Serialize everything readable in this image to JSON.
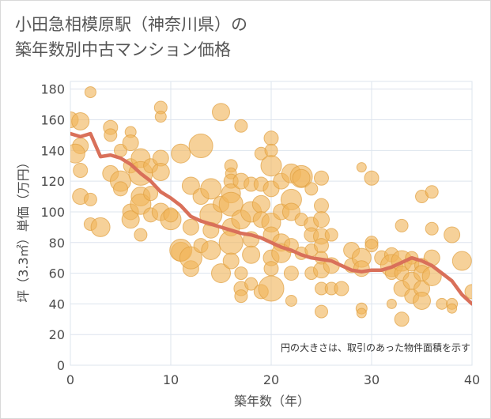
{
  "title_line1": "小田急相模原駅（神奈川県）の",
  "title_line2": "築年数別中古マンション価格",
  "chart_data": {
    "type": "scatter",
    "xlabel": "築年数（年）",
    "ylabel": "坪（3.3㎡）単価（万円）",
    "xlim": [
      0,
      40
    ],
    "ylim": [
      0,
      185
    ],
    "xticks": [
      0,
      10,
      20,
      30,
      40
    ],
    "yticks": [
      0,
      20,
      40,
      60,
      80,
      100,
      120,
      140,
      160,
      180
    ],
    "grid": true,
    "note": "円の大きさは、取引のあった物件面積を示す",
    "colors": {
      "bubble": "#f0b45a",
      "bubble_edge": "#e0a040",
      "line": "#d9705a",
      "grid": "#dde4ee"
    },
    "trend": {
      "x": [
        0,
        1,
        2,
        3,
        4,
        5,
        6,
        7,
        8,
        9,
        10,
        11,
        12,
        13,
        14,
        15,
        16,
        17,
        18,
        19,
        20,
        21,
        22,
        23,
        24,
        25,
        26,
        27,
        28,
        29,
        30,
        31,
        32,
        33,
        34,
        35,
        36,
        37,
        38,
        39,
        40
      ],
      "y": [
        151,
        149,
        151,
        136,
        137,
        135,
        131,
        125,
        120,
        113,
        109,
        104,
        97,
        94,
        92,
        90,
        88,
        86,
        85,
        83,
        80,
        77,
        75,
        72,
        70,
        69,
        68,
        65,
        62,
        61,
        62,
        62,
        64,
        67,
        70,
        68,
        65,
        60,
        55,
        46,
        40
      ]
    },
    "points": [
      [
        0,
        160,
        10
      ],
      [
        1,
        159,
        11
      ],
      [
        1,
        143,
        10
      ],
      [
        0.5,
        138,
        12
      ],
      [
        1,
        127,
        9
      ],
      [
        1,
        110,
        10
      ],
      [
        2,
        178,
        7
      ],
      [
        2,
        108,
        8
      ],
      [
        2,
        92,
        8
      ],
      [
        3,
        90,
        12
      ],
      [
        4,
        155,
        9
      ],
      [
        4,
        150,
        8
      ],
      [
        4,
        125,
        10
      ],
      [
        5,
        140,
        8
      ],
      [
        5,
        120,
        13
      ],
      [
        5,
        115,
        9
      ],
      [
        6,
        152,
        7
      ],
      [
        6,
        145,
        10
      ],
      [
        6,
        130,
        9
      ],
      [
        6,
        100,
        10
      ],
      [
        6,
        95,
        11
      ],
      [
        7,
        135,
        12
      ],
      [
        7,
        125,
        15
      ],
      [
        7,
        110,
        12
      ],
      [
        7,
        105,
        13
      ],
      [
        7,
        85,
        8
      ],
      [
        8,
        130,
        9
      ],
      [
        8,
        112,
        9
      ],
      [
        8,
        98,
        9
      ],
      [
        9,
        168,
        8
      ],
      [
        9,
        162,
        7
      ],
      [
        9,
        135,
        10
      ],
      [
        9,
        126,
        11
      ],
      [
        9,
        100,
        11
      ],
      [
        10,
        95,
        13
      ],
      [
        10,
        98,
        9
      ],
      [
        11,
        138,
        12
      ],
      [
        11,
        74,
        12
      ],
      [
        11,
        75,
        14
      ],
      [
        12,
        117,
        11
      ],
      [
        12,
        90,
        10
      ],
      [
        12,
        63,
        10
      ],
      [
        12,
        70,
        14
      ],
      [
        13,
        143,
        15
      ],
      [
        13,
        110,
        10
      ],
      [
        13,
        78,
        9
      ],
      [
        14,
        98,
        14
      ],
      [
        14,
        88,
        10
      ],
      [
        14,
        115,
        13
      ],
      [
        14,
        75,
        12
      ],
      [
        15,
        165,
        11
      ],
      [
        15,
        105,
        10
      ],
      [
        15,
        60,
        12
      ],
      [
        16,
        130,
        8
      ],
      [
        16,
        125,
        7
      ],
      [
        16,
        120,
        9
      ],
      [
        16,
        112,
        12
      ],
      [
        16,
        105,
        15
      ],
      [
        16,
        90,
        11
      ],
      [
        16,
        80,
        15
      ],
      [
        16,
        68,
        10
      ],
      [
        17,
        156,
        8
      ],
      [
        17,
        120,
        10
      ],
      [
        17,
        95,
        12
      ],
      [
        17,
        60,
        8
      ],
      [
        17,
        50,
        9
      ],
      [
        17,
        45,
        8
      ],
      [
        18,
        118,
        9
      ],
      [
        18,
        100,
        13
      ],
      [
        18,
        82,
        10
      ],
      [
        18,
        72,
        11
      ],
      [
        18,
        53,
        8
      ],
      [
        19,
        138,
        8
      ],
      [
        19,
        118,
        9
      ],
      [
        19,
        105,
        11
      ],
      [
        19,
        95,
        10
      ],
      [
        19,
        48,
        9
      ],
      [
        20,
        148,
        9
      ],
      [
        20,
        140,
        8
      ],
      [
        20,
        130,
        13
      ],
      [
        20,
        115,
        10
      ],
      [
        20,
        93,
        12
      ],
      [
        20,
        85,
        10
      ],
      [
        20,
        70,
        10
      ],
      [
        20,
        63,
        9
      ],
      [
        20,
        50,
        16
      ],
      [
        21,
        120,
        10
      ],
      [
        21,
        100,
        10
      ],
      [
        21,
        80,
        11
      ],
      [
        21,
        73,
        12
      ],
      [
        22,
        125,
        12
      ],
      [
        22,
        108,
        13
      ],
      [
        22,
        100,
        11
      ],
      [
        22,
        78,
        9
      ],
      [
        22,
        60,
        9
      ],
      [
        22,
        42,
        7
      ],
      [
        23,
        123,
        14
      ],
      [
        23,
        122,
        11
      ],
      [
        23,
        95,
        8
      ],
      [
        23,
        73,
        8
      ],
      [
        24,
        115,
        8
      ],
      [
        24,
        92,
        9
      ],
      [
        24,
        85,
        9
      ],
      [
        24,
        75,
        8
      ],
      [
        24,
        60,
        8
      ],
      [
        25,
        122,
        9
      ],
      [
        25,
        104,
        9
      ],
      [
        25,
        95,
        10
      ],
      [
        25,
        84,
        10
      ],
      [
        25,
        78,
        9
      ],
      [
        25,
        70,
        8
      ],
      [
        25,
        62,
        10
      ],
      [
        25,
        50,
        8
      ],
      [
        25,
        35,
        8
      ],
      [
        26,
        85,
        8
      ],
      [
        26,
        65,
        10
      ],
      [
        26,
        50,
        8
      ],
      [
        27,
        50,
        9
      ],
      [
        28,
        75,
        10
      ],
      [
        28,
        65,
        9
      ],
      [
        29,
        129,
        6
      ],
      [
        29,
        70,
        12
      ],
      [
        29,
        63,
        10
      ],
      [
        29,
        37,
        7
      ],
      [
        29,
        34,
        6
      ],
      [
        30,
        122,
        9
      ],
      [
        30,
        80,
        8
      ],
      [
        30,
        78,
        8
      ],
      [
        31,
        70,
        9
      ],
      [
        32,
        72,
        9
      ],
      [
        32,
        65,
        14
      ],
      [
        32,
        60,
        8
      ],
      [
        32,
        40,
        6
      ],
      [
        33,
        91,
        8
      ],
      [
        33,
        68,
        13
      ],
      [
        33,
        60,
        9
      ],
      [
        33,
        50,
        10
      ],
      [
        33,
        30,
        9
      ],
      [
        34,
        70,
        8
      ],
      [
        34,
        66,
        9
      ],
      [
        34,
        55,
        11
      ],
      [
        34,
        45,
        9
      ],
      [
        35,
        110,
        8
      ],
      [
        35,
        65,
        9
      ],
      [
        35,
        60,
        10
      ],
      [
        35,
        50,
        10
      ],
      [
        35,
        42,
        11
      ],
      [
        36,
        113,
        8
      ],
      [
        36,
        89,
        8
      ],
      [
        36,
        70,
        10
      ],
      [
        36,
        58,
        12
      ],
      [
        37,
        40,
        7
      ],
      [
        38,
        85,
        10
      ],
      [
        38,
        40,
        7
      ],
      [
        38,
        37,
        6
      ],
      [
        39,
        68,
        12
      ],
      [
        40,
        48,
        9
      ]
    ]
  }
}
